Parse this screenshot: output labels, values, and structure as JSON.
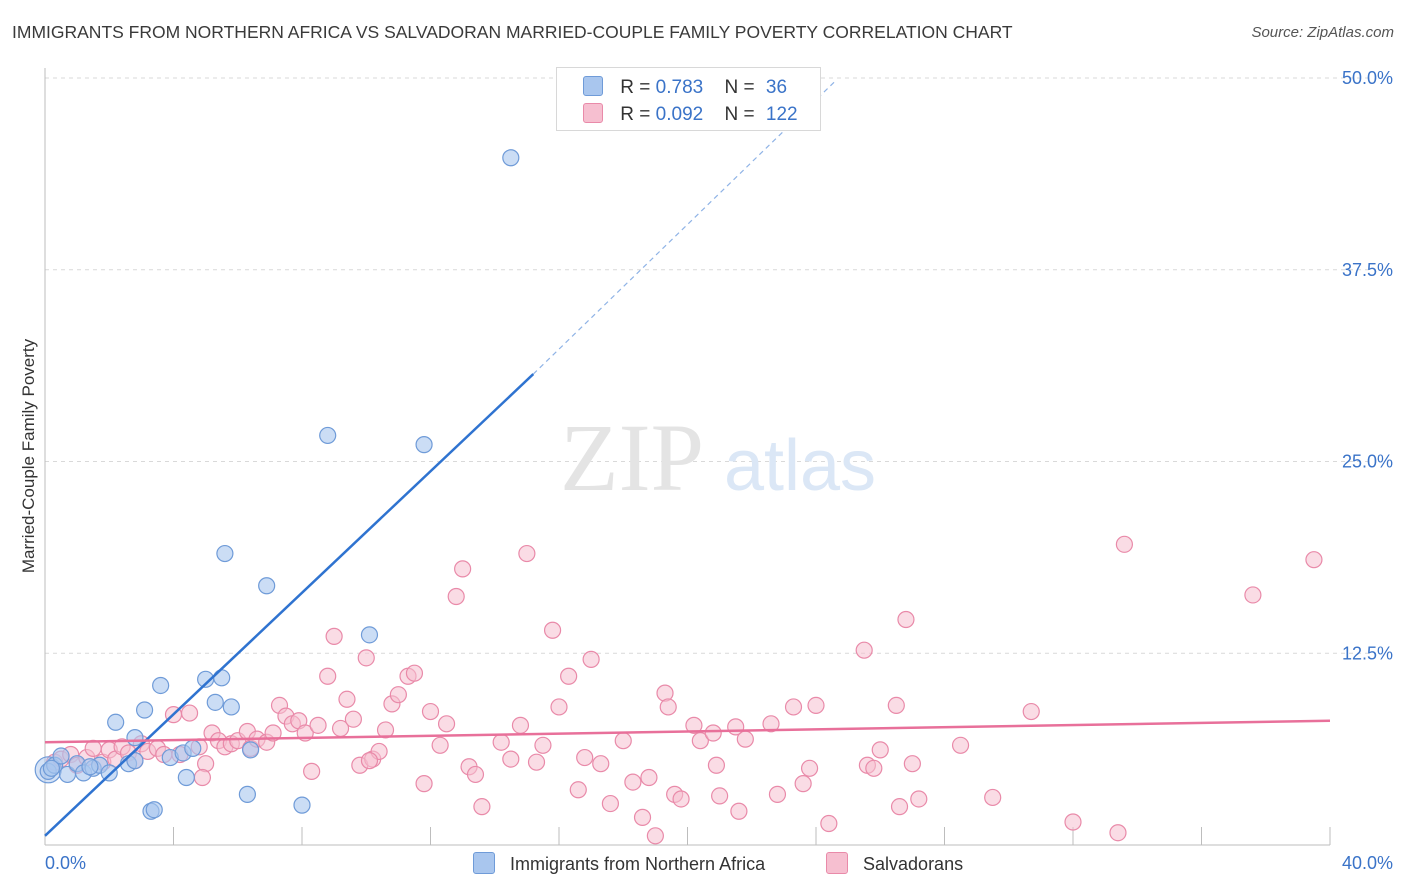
{
  "header": {
    "title": "IMMIGRANTS FROM NORTHERN AFRICA VS SALVADORAN MARRIED-COUPLE FAMILY POVERTY CORRELATION CHART",
    "source": "Source: ZipAtlas.com"
  },
  "legend_stats": {
    "blue": {
      "r_label": "R =",
      "r_value": "0.783",
      "n_label": "N =",
      "n_value": "36"
    },
    "pink": {
      "r_label": "R =",
      "r_value": "0.092",
      "n_label": "N =",
      "n_value": "122"
    }
  },
  "colors": {
    "blue_fill": "#a9c6ee",
    "blue_stroke": "#6f9bd8",
    "blue_line": "#2f73d0",
    "pink_fill": "#f6bfd0",
    "pink_stroke": "#e98aa9",
    "pink_line": "#e8709a",
    "grid": "#d9d9d9",
    "tick_label": "#3a73c8"
  },
  "watermark": {
    "zip": "ZIP",
    "atlas": "atlas"
  },
  "chart_data": {
    "type": "scatter",
    "title": "IMMIGRANTS FROM NORTHERN AFRICA VS SALVADORAN MARRIED-COUPLE FAMILY POVERTY CORRELATION CHART",
    "xlabel": "",
    "ylabel": "Married-Couple Family Poverty",
    "xlim": [
      0,
      40
    ],
    "ylim": [
      0,
      50
    ],
    "x_tick_labels": [
      "0.0%",
      "40.0%"
    ],
    "y_ticks": [
      12.5,
      25.0,
      37.5,
      50.0
    ],
    "y_tick_labels": [
      "12.5%",
      "25.0%",
      "37.5%",
      "50.0%"
    ],
    "grid": true,
    "legend_position": "bottom",
    "series": [
      {
        "name": "Immigrants from Northern Africa",
        "trend": {
          "x": [
            0,
            15.2
          ],
          "y": [
            0.6,
            30.7
          ],
          "dashed_to": [
            24.6,
            49.8
          ]
        },
        "points": [
          [
            0.1,
            4.8
          ],
          [
            0.3,
            5.2
          ],
          [
            0.5,
            5.8
          ],
          [
            0.7,
            4.6
          ],
          [
            1.0,
            5.3
          ],
          [
            1.2,
            4.7
          ],
          [
            1.5,
            5.0
          ],
          [
            1.7,
            5.2
          ],
          [
            2.0,
            4.7
          ],
          [
            2.2,
            8.0
          ],
          [
            2.6,
            5.3
          ],
          [
            2.8,
            7.0
          ],
          [
            3.1,
            8.8
          ],
          [
            3.3,
            2.2
          ],
          [
            3.4,
            2.3
          ],
          [
            3.6,
            10.4
          ],
          [
            3.9,
            5.7
          ],
          [
            4.3,
            6.0
          ],
          [
            4.4,
            4.4
          ],
          [
            4.6,
            6.3
          ],
          [
            5.0,
            10.8
          ],
          [
            5.3,
            9.3
          ],
          [
            5.5,
            10.9
          ],
          [
            5.6,
            19.0
          ],
          [
            5.8,
            9.0
          ],
          [
            6.3,
            3.3
          ],
          [
            6.4,
            6.2
          ],
          [
            6.9,
            16.9
          ],
          [
            8.0,
            2.6
          ],
          [
            8.8,
            26.7
          ],
          [
            10.1,
            13.7
          ],
          [
            11.8,
            26.1
          ],
          [
            14.5,
            44.8
          ],
          [
            2.8,
            5.5
          ],
          [
            1.4,
            5.1
          ],
          [
            0.2,
            5.0
          ]
        ]
      },
      {
        "name": "Salvadorans",
        "trend": {
          "x": [
            0,
            40
          ],
          "y": [
            6.7,
            8.1
          ]
        },
        "points": [
          [
            0.3,
            5.4
          ],
          [
            0.5,
            5.6
          ],
          [
            0.8,
            5.9
          ],
          [
            1.0,
            5.2
          ],
          [
            1.3,
            5.7
          ],
          [
            1.5,
            6.3
          ],
          [
            1.8,
            5.4
          ],
          [
            2.0,
            6.2
          ],
          [
            2.2,
            5.6
          ],
          [
            2.4,
            6.4
          ],
          [
            2.6,
            6.0
          ],
          [
            2.8,
            5.5
          ],
          [
            3.0,
            6.6
          ],
          [
            3.2,
            6.1
          ],
          [
            3.5,
            6.3
          ],
          [
            3.7,
            5.9
          ],
          [
            4.0,
            8.5
          ],
          [
            4.2,
            5.9
          ],
          [
            4.5,
            8.6
          ],
          [
            4.8,
            6.4
          ],
          [
            5.0,
            5.3
          ],
          [
            5.2,
            7.3
          ],
          [
            5.4,
            6.8
          ],
          [
            5.6,
            6.4
          ],
          [
            5.8,
            6.6
          ],
          [
            6.0,
            6.8
          ],
          [
            6.3,
            7.4
          ],
          [
            6.4,
            6.3
          ],
          [
            6.6,
            6.9
          ],
          [
            6.9,
            6.7
          ],
          [
            7.1,
            7.3
          ],
          [
            7.3,
            9.1
          ],
          [
            7.5,
            8.4
          ],
          [
            7.7,
            7.9
          ],
          [
            7.9,
            8.1
          ],
          [
            8.1,
            7.3
          ],
          [
            8.3,
            4.8
          ],
          [
            8.5,
            7.8
          ],
          [
            8.8,
            11.0
          ],
          [
            9.0,
            13.6
          ],
          [
            9.2,
            7.6
          ],
          [
            9.4,
            9.5
          ],
          [
            9.6,
            8.2
          ],
          [
            9.8,
            5.2
          ],
          [
            10.0,
            12.2
          ],
          [
            10.2,
            5.6
          ],
          [
            10.4,
            6.1
          ],
          [
            10.6,
            7.5
          ],
          [
            10.8,
            9.2
          ],
          [
            11.0,
            9.8
          ],
          [
            11.3,
            11.0
          ],
          [
            11.5,
            11.2
          ],
          [
            11.8,
            4.0
          ],
          [
            12.0,
            8.7
          ],
          [
            12.3,
            6.5
          ],
          [
            12.5,
            7.9
          ],
          [
            12.8,
            16.2
          ],
          [
            13.0,
            18.0
          ],
          [
            13.2,
            5.1
          ],
          [
            13.4,
            4.6
          ],
          [
            13.6,
            2.5
          ],
          [
            14.2,
            6.7
          ],
          [
            14.5,
            5.6
          ],
          [
            14.8,
            7.8
          ],
          [
            15.0,
            19.0
          ],
          [
            15.3,
            5.4
          ],
          [
            15.5,
            6.5
          ],
          [
            15.8,
            14.0
          ],
          [
            16.0,
            9.0
          ],
          [
            16.3,
            11.0
          ],
          [
            16.6,
            3.6
          ],
          [
            16.8,
            5.7
          ],
          [
            17.0,
            12.1
          ],
          [
            17.3,
            5.3
          ],
          [
            17.6,
            2.7
          ],
          [
            18.0,
            6.8
          ],
          [
            18.3,
            4.1
          ],
          [
            18.6,
            1.8
          ],
          [
            18.8,
            4.4
          ],
          [
            19.0,
            0.6
          ],
          [
            19.3,
            9.9
          ],
          [
            19.4,
            9.0
          ],
          [
            19.6,
            3.3
          ],
          [
            19.8,
            3.0
          ],
          [
            20.2,
            7.8
          ],
          [
            20.4,
            6.8
          ],
          [
            20.8,
            7.3
          ],
          [
            20.9,
            5.2
          ],
          [
            21.0,
            3.2
          ],
          [
            21.5,
            7.7
          ],
          [
            21.6,
            2.2
          ],
          [
            21.8,
            6.9
          ],
          [
            22.6,
            7.9
          ],
          [
            22.8,
            3.3
          ],
          [
            23.3,
            9.0
          ],
          [
            23.6,
            4.0
          ],
          [
            23.8,
            5.0
          ],
          [
            24.0,
            9.1
          ],
          [
            24.4,
            1.4
          ],
          [
            25.5,
            12.7
          ],
          [
            25.6,
            5.2
          ],
          [
            25.8,
            5.0
          ],
          [
            26.0,
            6.2
          ],
          [
            26.5,
            9.1
          ],
          [
            26.6,
            2.5
          ],
          [
            26.8,
            14.7
          ],
          [
            27.0,
            5.3
          ],
          [
            27.2,
            3.0
          ],
          [
            28.5,
            6.5
          ],
          [
            29.5,
            3.1
          ],
          [
            30.7,
            8.7
          ],
          [
            32.0,
            1.5
          ],
          [
            33.4,
            0.8
          ],
          [
            33.6,
            19.6
          ],
          [
            37.6,
            16.3
          ],
          [
            39.5,
            18.6
          ],
          [
            4.9,
            4.4
          ],
          [
            10.1,
            5.5
          ]
        ]
      }
    ]
  },
  "bottom_legend": {
    "blue_label": "Immigrants from Northern Africa",
    "pink_label": "Salvadorans"
  }
}
